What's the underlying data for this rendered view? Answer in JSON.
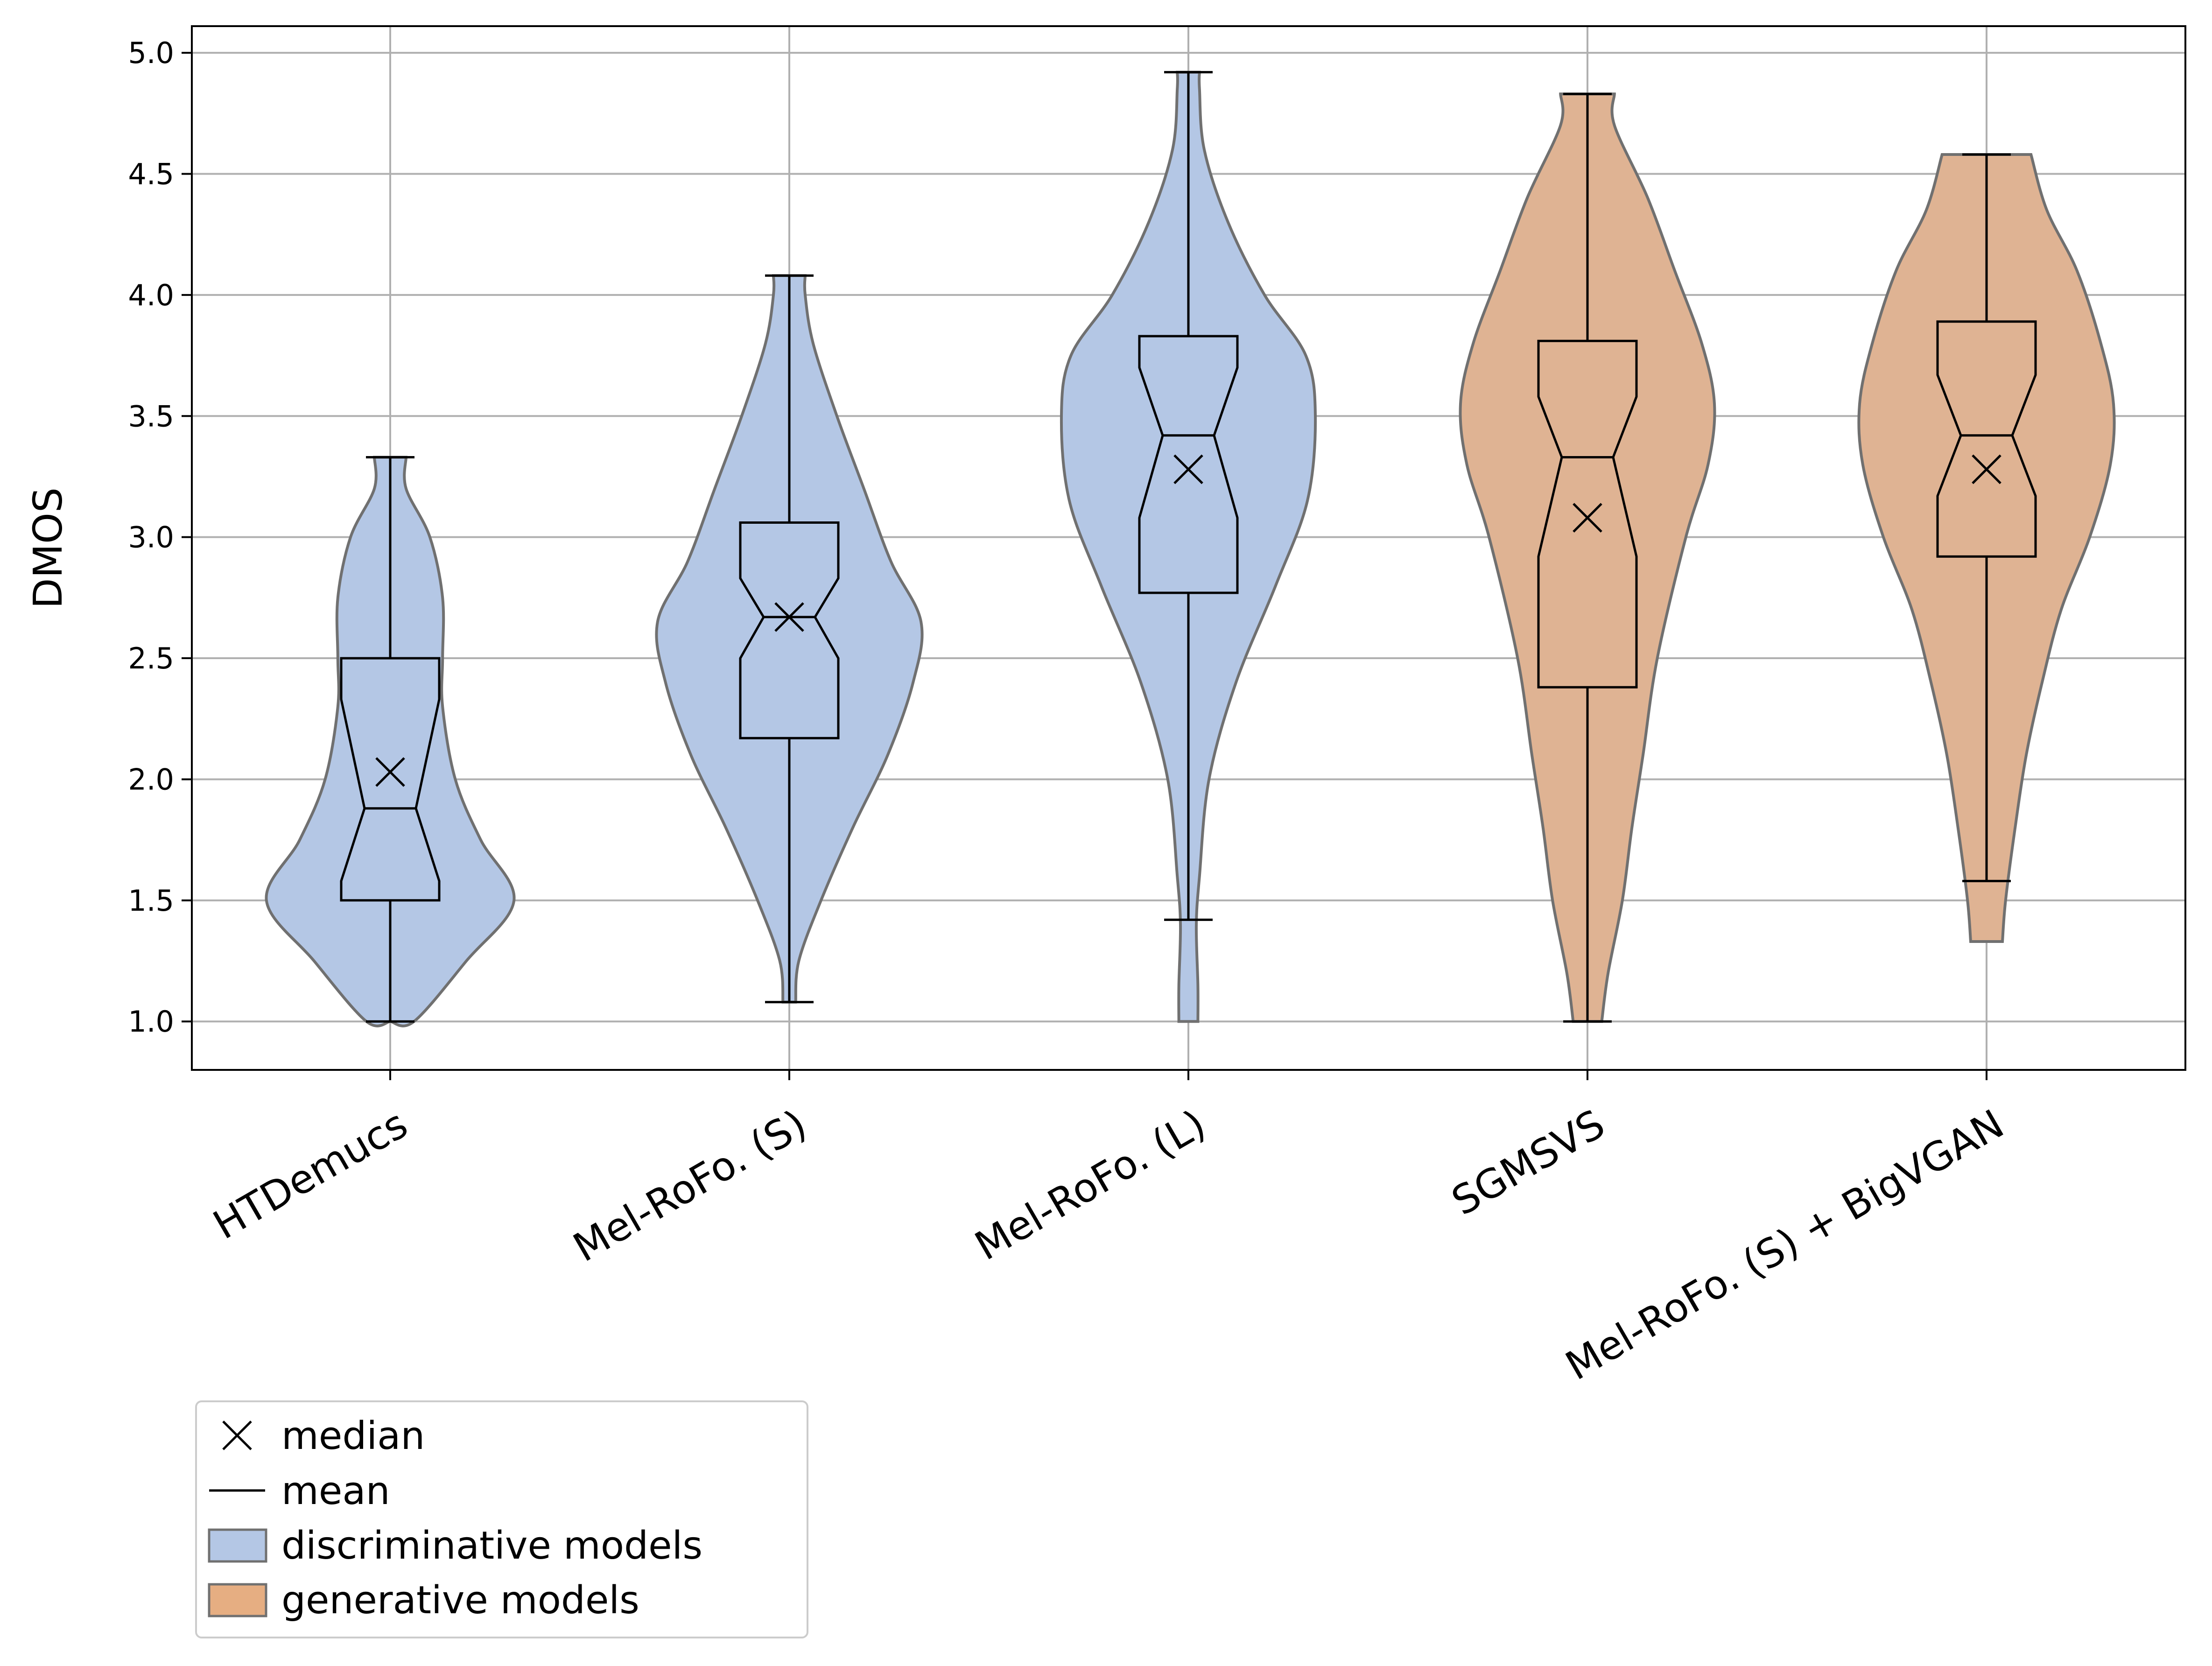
{
  "chart_data": {
    "type": "violin",
    "title": "",
    "xlabel": "",
    "ylabel": "DMOS",
    "ylim": [
      0.8,
      5.11
    ],
    "yticks": [
      "1.0",
      "1.5",
      "2.0",
      "2.5",
      "3.0",
      "3.5",
      "4.0",
      "4.5",
      "5.0"
    ],
    "grid": true,
    "legend_position": "below-left",
    "categories": [
      "HTDemucs",
      "Mel-RoFo. (S)",
      "Mel-RoFo. (L)",
      "SGMSVS",
      "Mel-RoFo. (S) + BigVGAN"
    ],
    "series": [
      {
        "category": "HTDemucs",
        "group": "discriminative",
        "min": 1.0,
        "max": 3.33,
        "q1": 1.5,
        "q3": 2.5,
        "notch_low": 1.58,
        "notch_high": 2.33,
        "center_line": 1.88,
        "median_marker": 2.03,
        "density": [
          [
            1.0,
            0.0
          ],
          [
            1.0,
            0.15
          ],
          [
            1.25,
            0.48
          ],
          [
            1.5,
            0.78
          ],
          [
            1.75,
            0.57
          ],
          [
            2.0,
            0.41
          ],
          [
            2.3,
            0.33
          ],
          [
            2.5,
            0.33
          ],
          [
            2.75,
            0.33
          ],
          [
            3.0,
            0.25
          ],
          [
            3.2,
            0.1
          ],
          [
            3.33,
            0.1
          ]
        ]
      },
      {
        "category": "Mel-RoFo. (S)",
        "group": "discriminative",
        "min": 1.08,
        "max": 4.08,
        "q1": 2.17,
        "q3": 3.06,
        "notch_low": 2.5,
        "notch_high": 2.83,
        "center_line": 2.67,
        "median_marker": 2.67,
        "density": [
          [
            1.08,
            0.04
          ],
          [
            1.25,
            0.06
          ],
          [
            1.5,
            0.2
          ],
          [
            1.8,
            0.4
          ],
          [
            2.1,
            0.62
          ],
          [
            2.4,
            0.78
          ],
          [
            2.65,
            0.83
          ],
          [
            2.9,
            0.64
          ],
          [
            3.2,
            0.47
          ],
          [
            3.5,
            0.3
          ],
          [
            3.8,
            0.15
          ],
          [
            4.0,
            0.1
          ],
          [
            4.08,
            0.1
          ]
        ]
      },
      {
        "category": "Mel-RoFo. (L)",
        "group": "discriminative",
        "min": 1.42,
        "max": 4.92,
        "q1": 2.77,
        "q3": 3.83,
        "notch_low": 3.08,
        "notch_high": 3.7,
        "center_line": 3.42,
        "median_marker": 3.28,
        "density": [
          [
            1.0,
            0.06
          ],
          [
            1.15,
            0.06
          ],
          [
            1.4,
            0.05
          ],
          [
            1.6,
            0.07
          ],
          [
            2.0,
            0.13
          ],
          [
            2.4,
            0.3
          ],
          [
            2.8,
            0.55
          ],
          [
            3.15,
            0.75
          ],
          [
            3.5,
            0.8
          ],
          [
            3.75,
            0.74
          ],
          [
            4.0,
            0.48
          ],
          [
            4.3,
            0.25
          ],
          [
            4.6,
            0.1
          ],
          [
            4.85,
            0.07
          ],
          [
            4.92,
            0.07
          ]
        ]
      },
      {
        "category": "SGMSVS",
        "group": "generative",
        "min": 1.0,
        "max": 4.83,
        "q1": 2.38,
        "q3": 3.81,
        "notch_low": 2.92,
        "notch_high": 3.58,
        "center_line": 3.33,
        "median_marker": 3.08,
        "density": [
          [
            1.0,
            0.09
          ],
          [
            1.2,
            0.13
          ],
          [
            1.5,
            0.22
          ],
          [
            1.8,
            0.28
          ],
          [
            2.1,
            0.35
          ],
          [
            2.5,
            0.44
          ],
          [
            3.0,
            0.62
          ],
          [
            3.3,
            0.76
          ],
          [
            3.55,
            0.8
          ],
          [
            3.8,
            0.72
          ],
          [
            4.1,
            0.55
          ],
          [
            4.4,
            0.38
          ],
          [
            4.7,
            0.17
          ],
          [
            4.83,
            0.17
          ]
        ]
      },
      {
        "category": "Mel-RoFo. (S) + BigVGAN",
        "group": "generative",
        "min": 1.58,
        "max": 4.58,
        "q1": 2.92,
        "q3": 3.89,
        "notch_low": 3.17,
        "notch_high": 3.67,
        "center_line": 3.42,
        "median_marker": 3.28,
        "density": [
          [
            1.33,
            0.1
          ],
          [
            1.5,
            0.12
          ],
          [
            1.8,
            0.18
          ],
          [
            2.1,
            0.25
          ],
          [
            2.4,
            0.35
          ],
          [
            2.7,
            0.47
          ],
          [
            3.0,
            0.65
          ],
          [
            3.3,
            0.78
          ],
          [
            3.55,
            0.8
          ],
          [
            3.8,
            0.72
          ],
          [
            4.1,
            0.57
          ],
          [
            4.35,
            0.38
          ],
          [
            4.58,
            0.28
          ]
        ]
      }
    ],
    "colors": {
      "discriminative": "#b4c7e5",
      "generative": "#dfb393",
      "violin_edge": "#707070",
      "box": "#000000",
      "grid": "#b0b0b0",
      "legend_generative_swatch": "#e6ae82"
    },
    "legend": [
      {
        "symbol": "x-marker",
        "label": "median"
      },
      {
        "symbol": "line",
        "label": "mean"
      },
      {
        "symbol": "patch-discriminative",
        "label": "discriminative models"
      },
      {
        "symbol": "patch-generative",
        "label": "generative models"
      }
    ]
  }
}
